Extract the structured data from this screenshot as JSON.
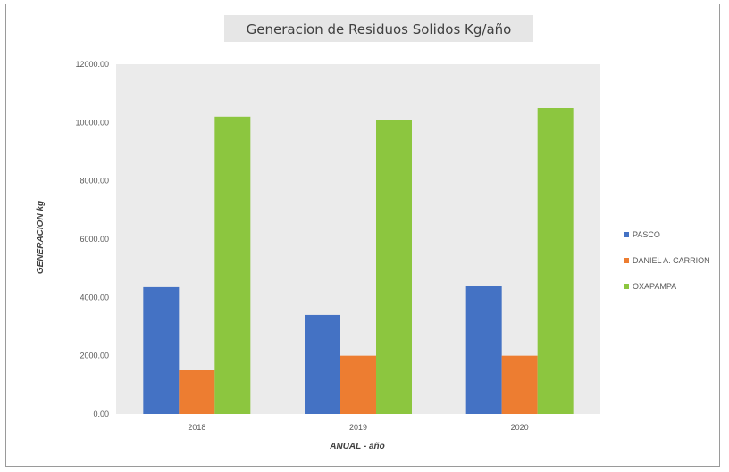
{
  "chart_data": {
    "type": "bar",
    "title": "Generacion de Residuos Solidos Kg/año",
    "xlabel": "ANUAL - año",
    "ylabel": "GENERACION kg",
    "categories": [
      "2018",
      "2019",
      "2020"
    ],
    "ylim": [
      0,
      12000
    ],
    "yticks": [
      "0.00",
      "2000.00",
      "4000.00",
      "6000.00",
      "8000.00",
      "10000.00",
      "12000.00"
    ],
    "grid": false,
    "legend_position": "right",
    "series": [
      {
        "name": "PASCO",
        "color": "#4472c4",
        "values": [
          4350,
          3400,
          4380
        ]
      },
      {
        "name": "DANIEL A. CARRION",
        "color": "#ed7d31",
        "values": [
          1500,
          2000,
          2000
        ]
      },
      {
        "name": "OXAPAMPA",
        "color": "#8cc63f",
        "values": [
          10200,
          10100,
          10500
        ]
      }
    ]
  }
}
